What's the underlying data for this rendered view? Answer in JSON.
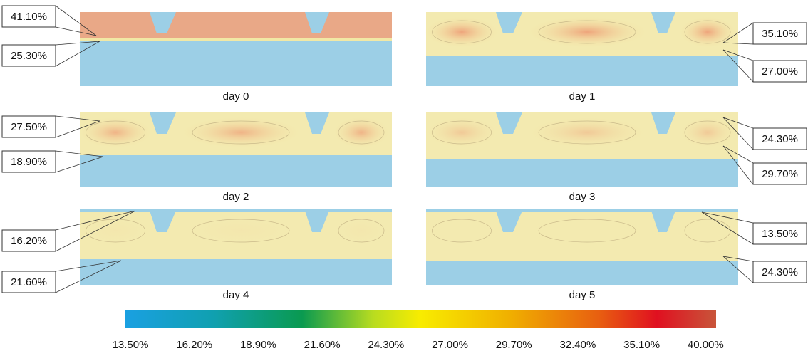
{
  "panels": [
    {
      "caption": "day 0"
    },
    {
      "caption": "day 1"
    },
    {
      "caption": "day 2"
    },
    {
      "caption": "day 3"
    },
    {
      "caption": "day 4"
    },
    {
      "caption": "day 5"
    }
  ],
  "callouts": [
    {
      "label": "41.10%"
    },
    {
      "label": "25.30%"
    },
    {
      "label": "35.10%"
    },
    {
      "label": "27.00%"
    },
    {
      "label": "27.50%"
    },
    {
      "label": "18.90%"
    },
    {
      "label": "24.30%"
    },
    {
      "label": "29.70%"
    },
    {
      "label": "16.20%"
    },
    {
      "label": "21.60%"
    },
    {
      "label": "13.50%"
    },
    {
      "label": "24.30%"
    }
  ],
  "colorbar": {
    "ticks": [
      "13.50%",
      "16.20%",
      "18.90%",
      "21.60%",
      "24.30%",
      "27.00%",
      "29.70%",
      "32.40%",
      "35.10%",
      "40.00%"
    ]
  }
}
